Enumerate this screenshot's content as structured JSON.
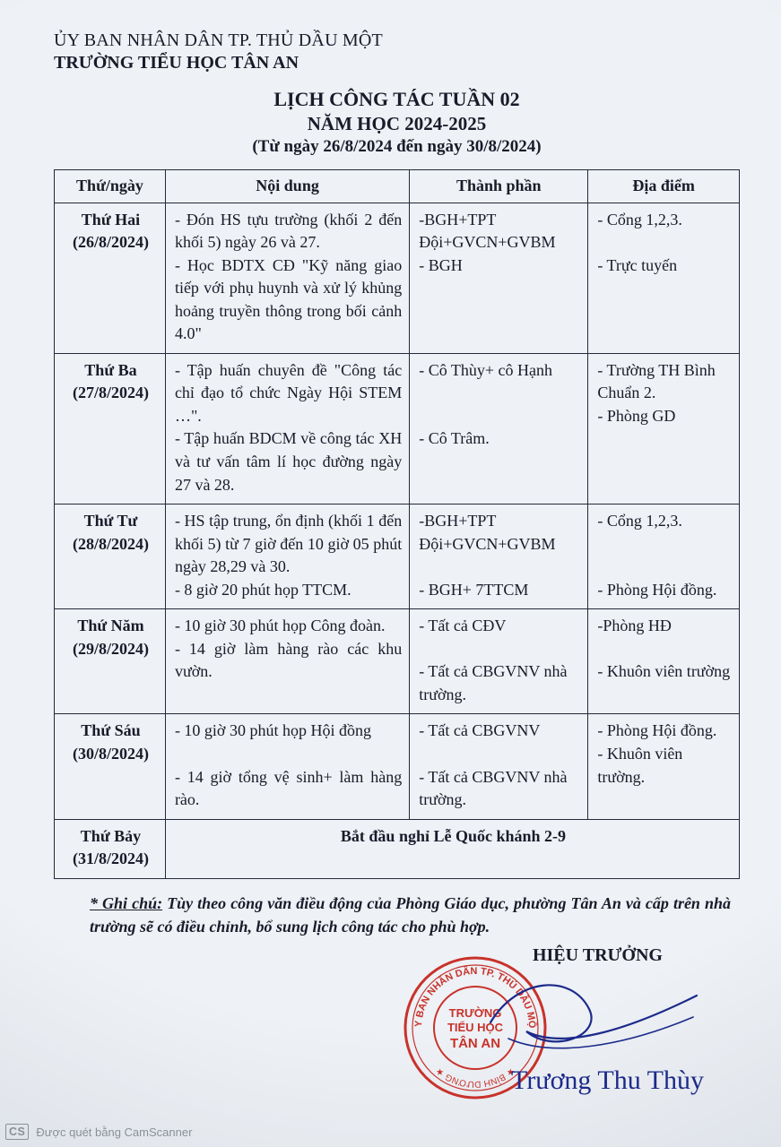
{
  "colors": {
    "page_bg": "#d8dde3",
    "paper_bg": "#eef1f5",
    "text": "#1a1a2a",
    "border": "#24283a",
    "stamp": "#c8322b",
    "ink": "#1b2a8a",
    "badge": "#8a8f99"
  },
  "header": {
    "org1": "ỦY BAN NHÂN DÂN TP. THỦ DẦU MỘT",
    "org2": "TRƯỜNG TIỂU HỌC TÂN AN"
  },
  "title": {
    "line1": "LỊCH CÔNG TÁC TUẦN 02",
    "line2": "NĂM HỌC 2024-2025",
    "line3": "(Từ ngày 26/8/2024 đến ngày 30/8/2024)"
  },
  "table": {
    "headers": {
      "day": "Thứ/ngày",
      "content": "Nội dung",
      "participants": "Thành phần",
      "location": "Địa điểm"
    },
    "rows": [
      {
        "day_name": "Thứ Hai",
        "day_date": "(26/8/2024)",
        "content": "- Đón HS tựu trường (khối 2 đến khối 5) ngày 26 và 27.\n- Học BDTX CĐ \"Kỹ năng giao tiếp với phụ huynh và xử lý khủng hoảng truyền thông trong bối cảnh 4.0\"",
        "participants": "-BGH+TPT Đội+GVCN+GVBM\n- BGH",
        "location": "- Cổng 1,2,3.\n\n- Trực tuyến"
      },
      {
        "day_name": "Thứ Ba",
        "day_date": "(27/8/2024)",
        "content": "- Tập huấn chuyên đề \"Công tác chỉ đạo tổ chức Ngày Hội STEM …\".\n- Tập huấn BDCM về công tác XH và tư vấn tâm lí học đường ngày 27 và 28.",
        "participants": "- Cô Thùy+ cô Hạnh\n\n\n- Cô Trâm.",
        "location": "- Trường TH Bình Chuẩn 2.\n- Phòng GD"
      },
      {
        "day_name": "Thứ Tư",
        "day_date": "(28/8/2024)",
        "content": "- HS tập trung, ổn định (khối 1 đến khối 5) từ 7 giờ đến 10 giờ 05 phút ngày 28,29 và 30.\n- 8 giờ 20 phút họp TTCM.",
        "participants": "-BGH+TPT Đội+GVCN+GVBM\n\n- BGH+ 7TTCM",
        "location": "- Cổng 1,2,3.\n\n\n- Phòng Hội đồng."
      },
      {
        "day_name": "Thứ Năm",
        "day_date": "(29/8/2024)",
        "content": "- 10 giờ 30 phút họp Công đoàn.\n- 14 giờ làm hàng rào các khu vườn.",
        "participants": "- Tất cả CĐV\n\n- Tất cả CBGVNV nhà trường.",
        "location": "-Phòng HĐ\n\n- Khuôn viên trường"
      },
      {
        "day_name": "Thứ Sáu",
        "day_date": "(30/8/2024)",
        "content": "- 10 giờ 30 phút họp Hội đồng\n\n- 14 giờ tổng vệ sinh+ làm hàng rào.",
        "participants": "- Tất cả CBGVNV\n\n- Tất cả CBGVNV nhà trường.",
        "location": "- Phòng Hội đồng.\n- Khuôn viên trường."
      }
    ],
    "saturday": {
      "day_name": "Thứ Bảy",
      "day_date": "(31/8/2024)",
      "note": "Bắt đầu nghỉ Lễ Quốc khánh 2-9"
    }
  },
  "footnote": {
    "label": "* Ghi chú:",
    "text": " Tùy theo công văn điều động của Phòng Giáo dục, phường Tân An và cấp trên nhà trường sẽ có điều chỉnh, bổ sung lịch công tác cho phù hợp."
  },
  "signature": {
    "title": "HIỆU TRƯỞNG",
    "stamp_line1": "TRƯỜNG",
    "stamp_line2": "TIỂU HỌC",
    "stamp_line3": "TÂN AN",
    "name": "Trương Thu Thùy"
  },
  "scanner_badge": {
    "logo": "CS",
    "text": "Được quét bằng CamScanner"
  }
}
